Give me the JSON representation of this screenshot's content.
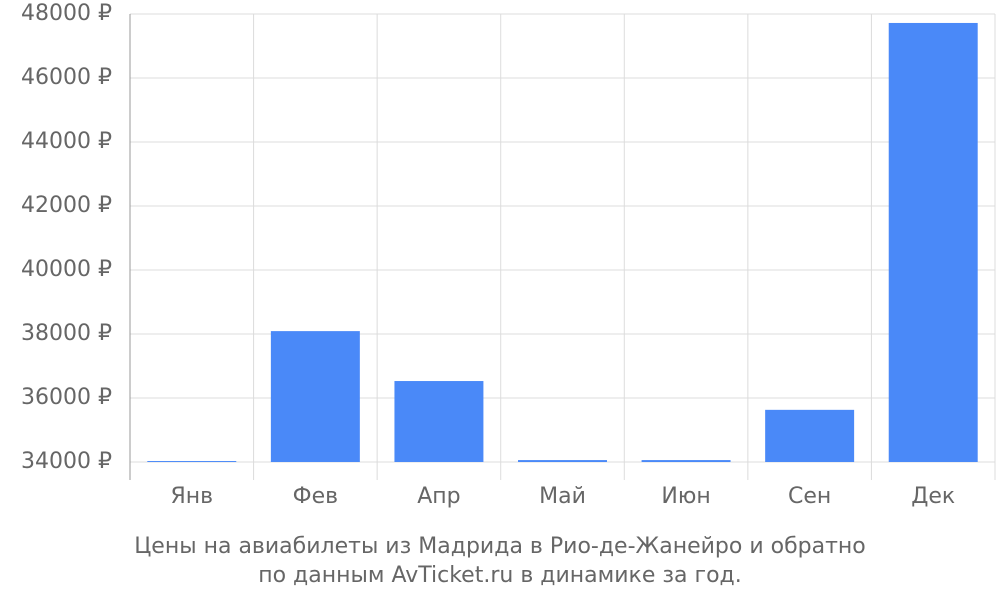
{
  "chart_data": {
    "type": "bar",
    "title": [
      "Цены на авиабилеты из Мадрида в Рио-де-Жанейро и обратно",
      "по данным AvTicket.ru в динамике за год."
    ],
    "categories": [
      "Янв",
      "Фев",
      "Апр",
      "Май",
      "Июн",
      "Сен",
      "Дек"
    ],
    "values": [
      34030,
      38090,
      36530,
      34060,
      34060,
      35630,
      47720
    ],
    "color": "#4a89f8",
    "ylim": [
      34000,
      48000
    ],
    "yticks": [
      {
        "value": 34000,
        "label": "34000 ₽"
      },
      {
        "value": 36000,
        "label": "36000 ₽"
      },
      {
        "value": 38000,
        "label": "38000 ₽"
      },
      {
        "value": 40000,
        "label": "40000 ₽"
      },
      {
        "value": 42000,
        "label": "42000 ₽"
      },
      {
        "value": 44000,
        "label": "44000 ₽"
      },
      {
        "value": 46000,
        "label": "46000 ₽"
      },
      {
        "value": 48000,
        "label": "48000 ₽"
      }
    ],
    "grid": true
  }
}
